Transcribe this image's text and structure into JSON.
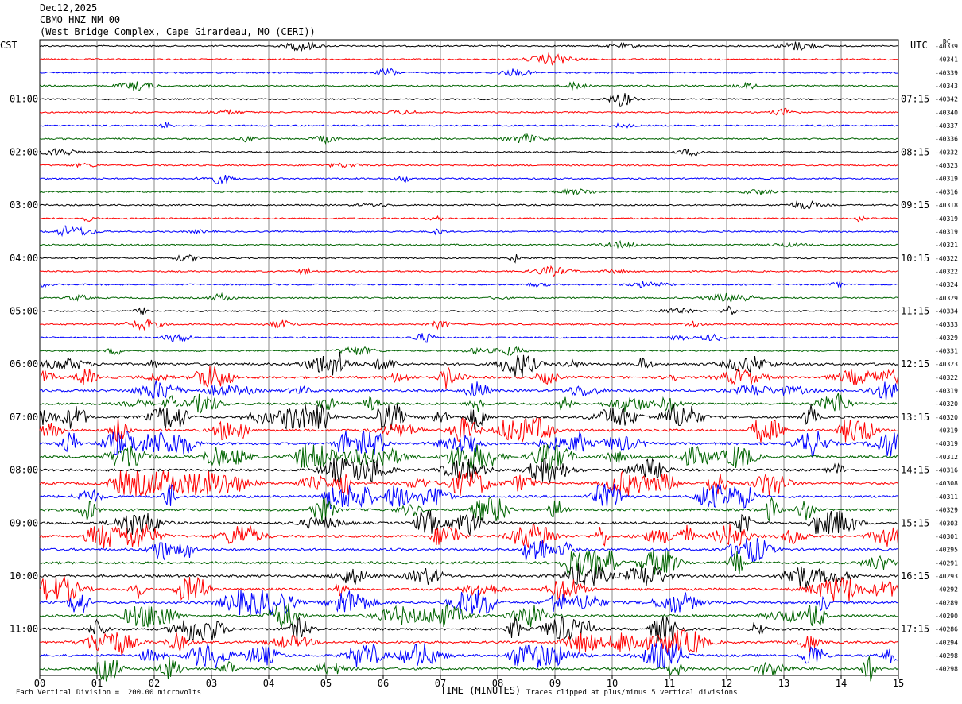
{
  "header": {
    "date": "Dec12,2025",
    "station": "CBMO HNZ NM 00",
    "location": "(West Bridge Complex, Cape Girardeau, MO (CERI))"
  },
  "corners": {
    "left": "CST",
    "right": "UTC",
    "dc": "DC"
  },
  "footer": {
    "scale": "Each Vertical Division =  200.00 microvolts",
    "clip": "Traces clipped at plus/minus 5 vertical divisions"
  },
  "chart_data": {
    "type": "helicorder",
    "xlabel": "TIME (MINUTES)",
    "x_ticks": [
      "00",
      "01",
      "02",
      "03",
      "04",
      "05",
      "06",
      "07",
      "08",
      "09",
      "10",
      "11",
      "12",
      "13",
      "14",
      "15"
    ],
    "xlim": [
      0,
      15
    ],
    "trace_colors": [
      "#000000",
      "#ff0000",
      "#0000ff",
      "#006400"
    ],
    "left_hour_labels": [
      "01:00",
      "02:00",
      "03:00",
      "04:00",
      "05:00",
      "06:00",
      "07:00",
      "08:00",
      "09:00",
      "10:00",
      "11:00"
    ],
    "right_hour_labels": [
      "07:15",
      "08:15",
      "09:15",
      "10:15",
      "11:15",
      "12:15",
      "13:15",
      "14:15",
      "15:15",
      "16:15",
      "17:15"
    ],
    "dc_offsets": [
      "-40339",
      "-40341",
      "-40339",
      "-40343",
      "-40342",
      "-40340",
      "-40337",
      "-40336",
      "-40332",
      "-40323",
      "-40319",
      "-40316",
      "-40318",
      "-40319",
      "-40319",
      "-40321",
      "-40322",
      "-40322",
      "-40324",
      "-40329",
      "-40334",
      "-40333",
      "-40329",
      "-40331",
      "-40323",
      "-40322",
      "-40319",
      "-40320",
      "-40320",
      "-40319",
      "-40319",
      "-40312",
      "-40316",
      "-40308",
      "-40311",
      "-40329",
      "-40303",
      "-40301",
      "-40295",
      "-40291",
      "-40293",
      "-40292",
      "-40289",
      "-40290",
      "-40286",
      "-40294",
      "-40298",
      "-40298"
    ]
  }
}
